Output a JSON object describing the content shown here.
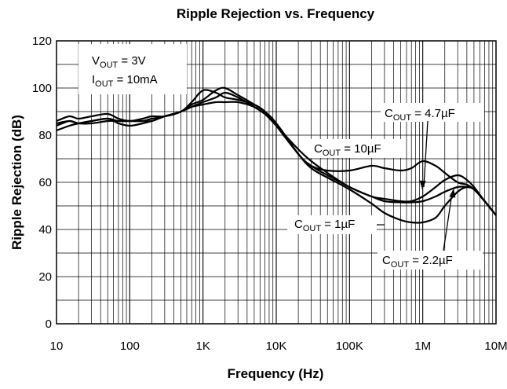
{
  "chart_data": {
    "type": "line",
    "title": "Ripple Rejection vs. Frequency",
    "xlabel": "Frequency (Hz)",
    "ylabel": "Ripple Rejection (dB)",
    "xscale": "log",
    "xlim": [
      10,
      10000000
    ],
    "ylim": [
      0,
      120
    ],
    "x_ticks": [
      {
        "value": 10,
        "label": "10"
      },
      {
        "value": 100,
        "label": "100"
      },
      {
        "value": 1000,
        "label": "1K"
      },
      {
        "value": 10000,
        "label": "10K"
      },
      {
        "value": 100000,
        "label": "100K"
      },
      {
        "value": 1000000,
        "label": "1M"
      },
      {
        "value": 10000000,
        "label": "10M"
      }
    ],
    "y_ticks": [
      0,
      20,
      40,
      60,
      80,
      100,
      120
    ],
    "grid": true,
    "conditions": [
      {
        "main": "V",
        "sub": "OUT",
        "rest": " = 3V"
      },
      {
        "main": "I",
        "sub": "OUT",
        "rest": " = 10mA"
      }
    ],
    "series": [
      {
        "name": "C_OUT = 1µF",
        "label": {
          "main": "C",
          "sub": "OUT",
          "rest": " = 1µF"
        },
        "x": [
          10,
          15,
          20,
          30,
          50,
          70,
          100,
          150,
          200,
          300,
          500,
          700,
          1000,
          1500,
          2000,
          3000,
          5000,
          7000,
          10000,
          20000,
          30000,
          50000,
          100000,
          200000,
          300000,
          500000,
          700000,
          1000000,
          1500000,
          2000000,
          3000000,
          4000000,
          5000000,
          7000000,
          10000000
        ],
        "values": [
          84,
          86,
          85,
          85,
          86,
          86,
          86,
          86,
          87,
          88,
          90,
          92,
          93,
          94,
          94,
          94,
          92,
          89,
          84,
          74,
          69,
          64,
          58,
          54,
          52,
          51.5,
          51.5,
          52,
          54,
          56,
          58,
          58,
          57,
          52,
          46
        ]
      },
      {
        "name": "C_OUT = 2.2µF",
        "label": {
          "main": "C",
          "sub": "OUT",
          "rest": " = 2.2µF"
        },
        "x": [
          10,
          15,
          20,
          30,
          50,
          70,
          100,
          150,
          200,
          300,
          500,
          700,
          1000,
          1500,
          2000,
          3000,
          5000,
          7000,
          10000,
          20000,
          30000,
          50000,
          100000,
          200000,
          300000,
          500000,
          700000,
          1000000,
          1500000,
          2000000,
          3000000,
          4000000,
          5000000,
          7000000,
          10000000
        ],
        "values": [
          82,
          84,
          85,
          86,
          87,
          85,
          84,
          85,
          86,
          88,
          90,
          92,
          94,
          96,
          98,
          96,
          92,
          89,
          85,
          72,
          66,
          62,
          57,
          51,
          47,
          44,
          43,
          43,
          45,
          50,
          56,
          58,
          57,
          52,
          46
        ]
      },
      {
        "name": "C_OUT = 4.7µF",
        "label": {
          "main": "C",
          "sub": "OUT",
          "rest": " = 4.7µF"
        },
        "x": [
          10,
          15,
          20,
          30,
          50,
          70,
          100,
          150,
          200,
          300,
          500,
          700,
          1000,
          1500,
          2000,
          3000,
          5000,
          7000,
          10000,
          20000,
          30000,
          50000,
          100000,
          200000,
          300000,
          500000,
          700000,
          1000000,
          1500000,
          2000000,
          3000000,
          4000000,
          5000000,
          7000000,
          10000000
        ],
        "values": [
          85,
          86,
          85,
          86,
          87,
          86,
          86,
          86,
          86,
          88,
          90,
          93,
          95,
          99,
          100,
          97,
          93,
          90,
          85,
          72,
          67,
          63,
          58,
          54,
          53,
          52,
          52,
          54,
          58,
          61,
          63,
          61,
          58,
          52,
          46
        ]
      },
      {
        "name": "C_OUT = 10µF",
        "label": {
          "main": "C",
          "sub": "OUT",
          "rest": " = 10µF"
        },
        "x": [
          10,
          15,
          20,
          30,
          50,
          70,
          100,
          150,
          200,
          300,
          500,
          700,
          1000,
          1500,
          2000,
          3000,
          5000,
          7000,
          10000,
          20000,
          30000,
          50000,
          100000,
          200000,
          300000,
          500000,
          700000,
          1000000,
          1500000,
          2000000,
          3000000,
          4000000,
          5000000,
          7000000,
          10000000
        ],
        "values": [
          86,
          88,
          87,
          88,
          89,
          87,
          86,
          87,
          88,
          88,
          90,
          94,
          99,
          98,
          96,
          95,
          93,
          90,
          84,
          72,
          67,
          65,
          65,
          67,
          66,
          65,
          66,
          69,
          67,
          64,
          60,
          59,
          57,
          52,
          46
        ]
      }
    ]
  }
}
